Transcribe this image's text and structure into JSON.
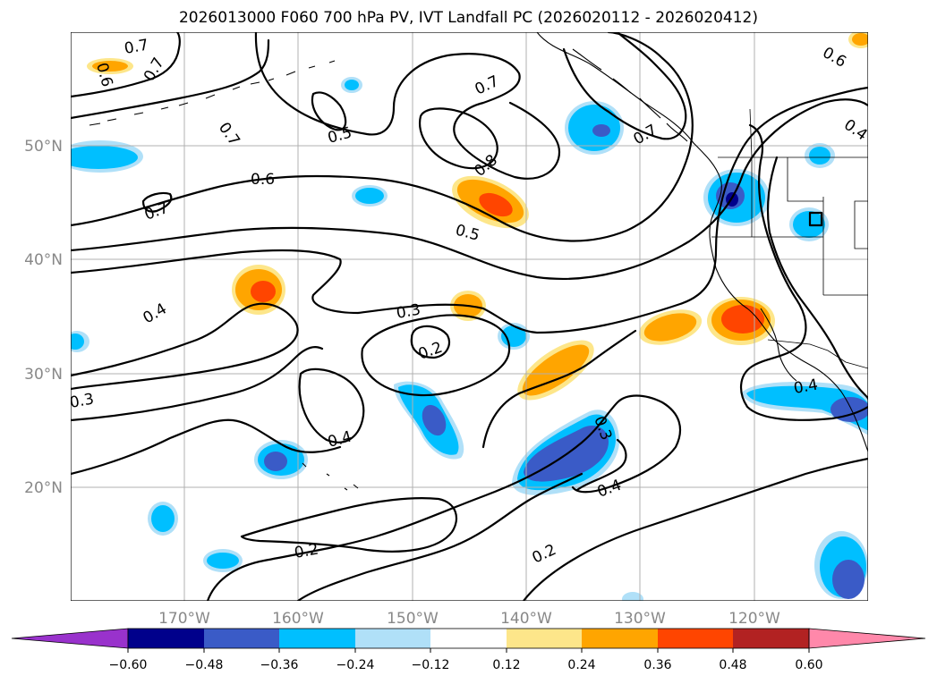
{
  "title": "2026013000 F060 700 hPa PV, IVT Landfall PC (2026020112 - 2026020412)",
  "map": {
    "lat_labels": [
      "50°N",
      "40°N",
      "30°N",
      "20°N"
    ],
    "lon_labels": [
      "170°W",
      "160°W",
      "150°W",
      "140°W",
      "130°W",
      "120°W"
    ],
    "contour_labels": [
      "0.7",
      "0.6",
      "0.7",
      "0.7",
      "0.5",
      "0.7",
      "0.8",
      "0.7",
      "0.6",
      "0.4",
      "0.6",
      "0.7",
      "0.5",
      "0.3",
      "0.2",
      "0.4",
      "0.3",
      "0.3",
      "0.4",
      "0.4",
      "0.2",
      "0.2",
      "0.4"
    ],
    "colors": {
      "neg_060": "#9932cc",
      "neg_048": "#00008b",
      "neg_036": "#3a5bc7",
      "neg_024": "#00bfff",
      "neg_012": "#b0e0f8",
      "zero": "#ffffff",
      "pos_012": "#fde68a",
      "pos_024": "#ffa500",
      "pos_036": "#ff4500",
      "pos_048": "#b22222",
      "pos_060": "#ff88aa"
    }
  },
  "colorbar": {
    "ticks": [
      "−0.60",
      "−0.48",
      "−0.36",
      "−0.24",
      "−0.12",
      "0.12",
      "0.24",
      "0.36",
      "0.48",
      "0.60"
    ],
    "bins": [
      "#9932cc",
      "#00008b",
      "#3a5bc7",
      "#00bfff",
      "#b0e0f8",
      "#ffffff",
      "#fde68a",
      "#ffa500",
      "#ff4500",
      "#b22222",
      "#ff88aa"
    ]
  }
}
